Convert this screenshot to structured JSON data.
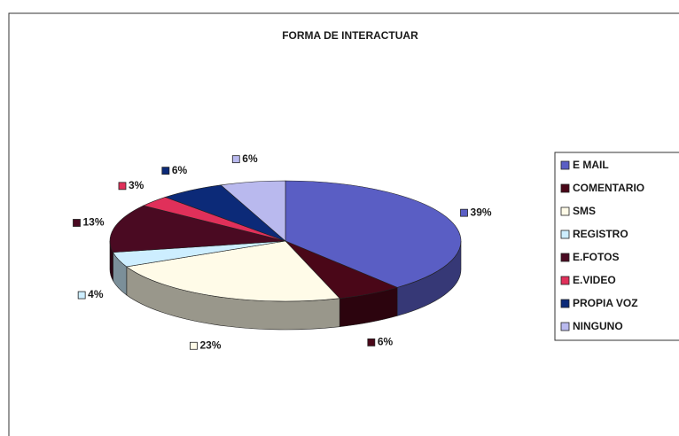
{
  "chart_data": {
    "type": "pie3d",
    "title": "FORMA DE INTERACTUAR",
    "categories": [
      "E MAIL",
      "COMENTARIO",
      "SMS",
      "REGISTRO",
      "E.FOTOS",
      "E.VIDEO",
      "PROPIA VOZ",
      "NINGUNO"
    ],
    "values": [
      39,
      6,
      23,
      4,
      13,
      3,
      6,
      6
    ],
    "value_labels": [
      "39%",
      "6%",
      "23%",
      "4%",
      "13%",
      "3%",
      "6%",
      "6%"
    ],
    "colors": [
      "#5a5ec4",
      "#4a0718",
      "#fffbe8",
      "#cdeeff",
      "#4a0a22",
      "#e0305a",
      "#0c2a78",
      "#b9b9ee"
    ],
    "legend": "right"
  }
}
